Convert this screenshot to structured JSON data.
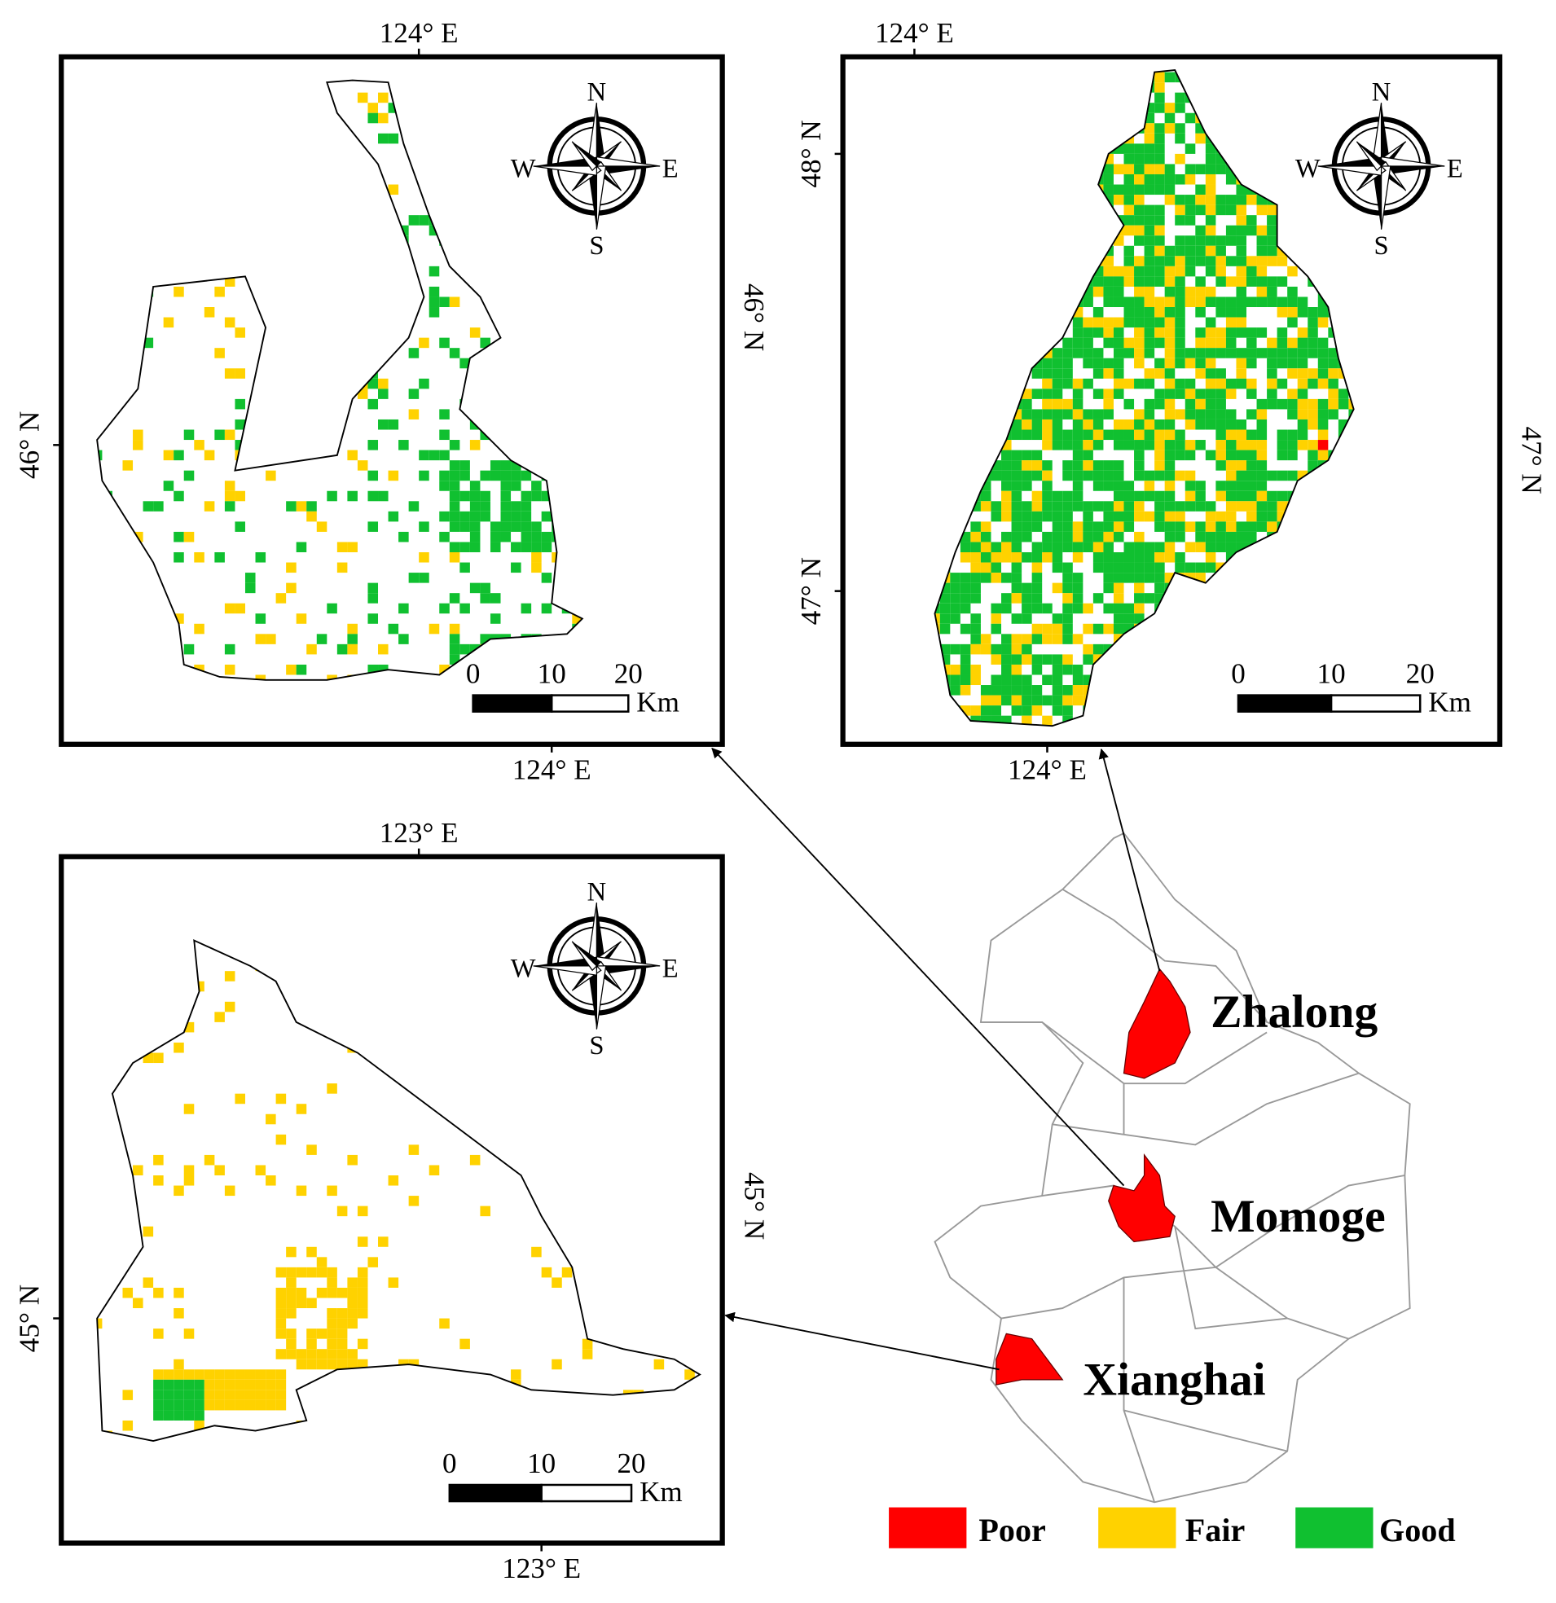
{
  "panels": [
    {
      "top_label": "124° E",
      "bottom_label": "124° E",
      "left_labels": [
        "46° N"
      ],
      "right_labels": [
        "46° N"
      ],
      "compass": [
        "N",
        "S",
        "W",
        "E"
      ],
      "scale_labels": [
        "0",
        "10",
        "20"
      ],
      "scale_unit": "Km"
    },
    {
      "top_label": "124° E",
      "bottom_label": "124° E",
      "left_labels": [
        "48° N",
        "47° N"
      ],
      "right_labels": [
        "47° N"
      ],
      "compass": [
        "N",
        "S",
        "W",
        "E"
      ],
      "scale_labels": [
        "0",
        "10",
        "20"
      ],
      "scale_unit": "Km"
    },
    {
      "top_label": "123° E",
      "bottom_label": "123° E",
      "left_labels": [
        "45° N"
      ],
      "right_labels": [
        "45° N"
      ],
      "compass": [
        "N",
        "S",
        "W",
        "E"
      ],
      "scale_labels": [
        "0",
        "10",
        "20"
      ],
      "scale_unit": "Km"
    }
  ],
  "regions": [
    {
      "label": "Zhalong"
    },
    {
      "label": "Momoge"
    },
    {
      "label": "Xianghai"
    }
  ],
  "legend": [
    {
      "label": "Poor",
      "color": "#ff0000"
    },
    {
      "label": "Fair",
      "color": "#ffd200"
    },
    {
      "label": "Good",
      "color": "#10c030"
    }
  ]
}
